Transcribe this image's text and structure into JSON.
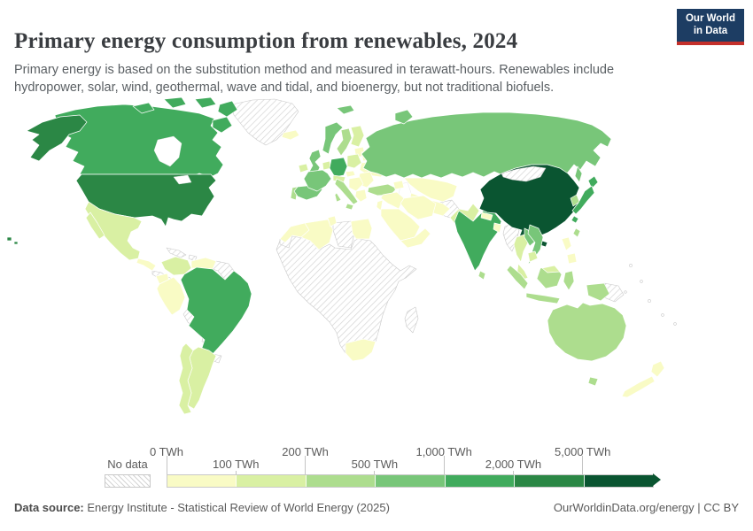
{
  "header": {
    "title": "Primary energy consumption from renewables, 2024",
    "subtitle": "Primary energy is based on the substitution method and measured in terawatt-hours. Renewables include hydropower, solar, wind, geothermal, wave and tidal, and bioenergy, but not traditional biofuels.",
    "logo": {
      "line1": "Our World",
      "line2": "in Data",
      "bg_color": "#1d3d63",
      "accent_color": "#c4302b"
    }
  },
  "chart_data": {
    "type": "choropleth_map",
    "title": "Primary energy consumption from renewables, 2024",
    "year": "2024",
    "unit": "TWh",
    "projection": "world",
    "legend": {
      "no_data_label": "No data",
      "bin_thresholds": [
        0,
        100,
        200,
        500,
        1000,
        2000,
        5000
      ],
      "bins": [
        {
          "label": "0–100 TWh",
          "color": "#f9fbc5"
        },
        {
          "label": "100–200 TWh",
          "color": "#d9f0a3"
        },
        {
          "label": "200–500 TWh",
          "color": "#addd8e"
        },
        {
          "label": "500–1,000 TWh",
          "color": "#78c679"
        },
        {
          "label": "1,000–2,000 TWh",
          "color": "#41ab5d"
        },
        {
          "label": "2,000–5,000 TWh",
          "color": "#2b8745"
        },
        {
          "label": "over 5,000 TWh",
          "color": "#0a5531"
        }
      ],
      "ticks": [
        {
          "label": "0 TWh",
          "boundary": 0,
          "row": "top"
        },
        {
          "label": "100 TWh",
          "boundary": 1,
          "row": "bottom"
        },
        {
          "label": "200 TWh",
          "boundary": 2,
          "row": "top"
        },
        {
          "label": "500 TWh",
          "boundary": 3,
          "row": "bottom"
        },
        {
          "label": "1,000 TWh",
          "boundary": 4,
          "row": "top"
        },
        {
          "label": "2,000 TWh",
          "boundary": 5,
          "row": "bottom"
        },
        {
          "label": "5,000 TWh",
          "boundary": 6,
          "row": "top"
        }
      ]
    },
    "regions": [
      {
        "id": "china",
        "name": "China",
        "bin": 6,
        "bucket": "over 5,000 TWh"
      },
      {
        "id": "united-states",
        "name": "United States",
        "bin": 5,
        "bucket": "2,000–5,000 TWh"
      },
      {
        "id": "canada",
        "name": "Canada",
        "bin": 4,
        "bucket": "1,000–2,000 TWh"
      },
      {
        "id": "brazil",
        "name": "Brazil",
        "bin": 4,
        "bucket": "1,000–2,000 TWh"
      },
      {
        "id": "india",
        "name": "India",
        "bin": 4,
        "bucket": "1,000–2,000 TWh"
      },
      {
        "id": "germany",
        "name": "Germany",
        "bin": 4,
        "bucket": "1,000–2,000 TWh"
      },
      {
        "id": "japan",
        "name": "Japan",
        "bin": 4,
        "bucket": "1,000–2,000 TWh"
      },
      {
        "id": "russia",
        "name": "Russia",
        "bin": 3,
        "bucket": "500–1,000 TWh"
      },
      {
        "id": "norway",
        "name": "Norway",
        "bin": 3,
        "bucket": "500–1,000 TWh"
      },
      {
        "id": "united-kingdom",
        "name": "United Kingdom",
        "bin": 3,
        "bucket": "500–1,000 TWh"
      },
      {
        "id": "france",
        "name": "France",
        "bin": 3,
        "bucket": "500–1,000 TWh"
      },
      {
        "id": "spain",
        "name": "Spain",
        "bin": 3,
        "bucket": "500–1,000 TWh"
      },
      {
        "id": "vietnam",
        "name": "Vietnam",
        "bin": 3,
        "bucket": "500–1,000 TWh"
      },
      {
        "id": "laos",
        "name": "Laos",
        "bin": 3,
        "bucket": "500–1,000 TWh"
      },
      {
        "id": "sweden",
        "name": "Sweden",
        "bin": 2,
        "bucket": "200–500 TWh"
      },
      {
        "id": "italy",
        "name": "Italy",
        "bin": 2,
        "bucket": "200–500 TWh"
      },
      {
        "id": "turkey",
        "name": "Turkey",
        "bin": 2,
        "bucket": "200–500 TWh"
      },
      {
        "id": "portugal",
        "name": "Portugal",
        "bin": 2,
        "bucket": "200–500 TWh"
      },
      {
        "id": "south-korea",
        "name": "South Korea",
        "bin": 2,
        "bucket": "200–500 TWh"
      },
      {
        "id": "australia",
        "name": "Australia",
        "bin": 2,
        "bucket": "200–500 TWh"
      },
      {
        "id": "indonesia",
        "name": "Indonesia",
        "bin": 2,
        "bucket": "200–500 TWh"
      },
      {
        "id": "taiwan",
        "name": "Taiwan",
        "bin": 2,
        "bucket": "200–500 TWh"
      },
      {
        "id": "sri-lanka",
        "name": "Sri Lanka",
        "bin": 2,
        "bucket": "200–500 TWh"
      },
      {
        "id": "mexico",
        "name": "Mexico",
        "bin": 1,
        "bucket": "100–200 TWh"
      },
      {
        "id": "colombia",
        "name": "Colombia",
        "bin": 1,
        "bucket": "100–200 TWh"
      },
      {
        "id": "argentina",
        "name": "Argentina",
        "bin": 1,
        "bucket": "100–200 TWh"
      },
      {
        "id": "chile",
        "name": "Chile",
        "bin": 1,
        "bucket": "100–200 TWh"
      },
      {
        "id": "finland",
        "name": "Finland",
        "bin": 1,
        "bucket": "100–200 TWh"
      },
      {
        "id": "poland",
        "name": "Poland",
        "bin": 1,
        "bucket": "100–200 TWh"
      },
      {
        "id": "pakistan",
        "name": "Pakistan",
        "bin": 1,
        "bucket": "100–200 TWh"
      },
      {
        "id": "thailand",
        "name": "Thailand",
        "bin": 1,
        "bucket": "100–200 TWh"
      },
      {
        "id": "ireland",
        "name": "Ireland",
        "bin": 1,
        "bucket": "100–200 TWh"
      },
      {
        "id": "malaysia",
        "name": "Malaysia",
        "bin": 1,
        "bucket": "100–200 TWh"
      },
      {
        "id": "netherlands-belgium",
        "name": "Netherlands & Belgium",
        "bin": 1,
        "bucket": "100–200 TWh"
      },
      {
        "id": "austria-switzerland",
        "name": "Austria & Switzerland",
        "bin": 1,
        "bucket": "100–200 TWh"
      },
      {
        "id": "cambodia",
        "name": "Cambodia",
        "bin": 1,
        "bucket": "100–200 TWh"
      },
      {
        "id": "iceland",
        "name": "Iceland",
        "bin": 0,
        "bucket": "0–100 TWh"
      },
      {
        "id": "peru",
        "name": "Peru",
        "bin": 0,
        "bucket": "0–100 TWh"
      },
      {
        "id": "ecuador",
        "name": "Ecuador",
        "bin": 0,
        "bucket": "0–100 TWh"
      },
      {
        "id": "venezuela",
        "name": "Venezuela",
        "bin": 0,
        "bucket": "0–100 TWh"
      },
      {
        "id": "new-zealand",
        "name": "New Zealand",
        "bin": 0,
        "bucket": "0–100 TWh"
      },
      {
        "id": "philippines",
        "name": "Philippines",
        "bin": 0,
        "bucket": "0–100 TWh"
      },
      {
        "id": "kazakhstan",
        "name": "Kazakhstan",
        "bin": 0,
        "bucket": "0–100 TWh"
      },
      {
        "id": "ukraine",
        "name": "Ukraine",
        "bin": 0,
        "bucket": "0–100 TWh"
      },
      {
        "id": "belarus",
        "name": "Belarus",
        "bin": 0,
        "bucket": "0–100 TWh"
      },
      {
        "id": "baltics",
        "name": "Baltic states",
        "bin": 0,
        "bucket": "0–100 TWh"
      },
      {
        "id": "denmark",
        "name": "Denmark",
        "bin": 0,
        "bucket": "0–100 TWh"
      },
      {
        "id": "czechia",
        "name": "Czechia",
        "bin": 0,
        "bucket": "0–100 TWh"
      },
      {
        "id": "balkans",
        "name": "Hungary & Balkans",
        "bin": 0,
        "bucket": "0–100 TWh"
      },
      {
        "id": "romania-bulgaria",
        "name": "Romania & Bulgaria",
        "bin": 0,
        "bucket": "0–100 TWh"
      },
      {
        "id": "greece",
        "name": "Greece",
        "bin": 0,
        "bucket": "0–100 TWh"
      },
      {
        "id": "morocco",
        "name": "Morocco",
        "bin": 0,
        "bucket": "0–100 TWh"
      },
      {
        "id": "algeria",
        "name": "Algeria",
        "bin": 0,
        "bucket": "0–100 TWh"
      },
      {
        "id": "tunisia",
        "name": "Tunisia",
        "bin": 0,
        "bucket": "0–100 TWh"
      },
      {
        "id": "egypt",
        "name": "Egypt",
        "bin": 0,
        "bucket": "0–100 TWh"
      },
      {
        "id": "south-africa",
        "name": "South Africa",
        "bin": 0,
        "bucket": "0–100 TWh"
      },
      {
        "id": "saudi-arabia",
        "name": "Saudi Arabia",
        "bin": 0,
        "bucket": "0–100 TWh"
      },
      {
        "id": "yemen-oman",
        "name": "Yemen & Oman",
        "bin": 0,
        "bucket": "0–100 TWh"
      },
      {
        "id": "iraq-syria",
        "name": "Iraq & Syria",
        "bin": 0,
        "bucket": "0–100 TWh"
      },
      {
        "id": "israel-jordan",
        "name": "Israel & Jordan",
        "bin": 0,
        "bucket": "0–100 TWh"
      },
      {
        "id": "iran",
        "name": "Iran",
        "bin": 0,
        "bucket": "0–100 TWh"
      },
      {
        "id": "central-asia",
        "name": "Turkmenistan & Uzbekistan",
        "bin": 0,
        "bucket": "0–100 TWh"
      },
      {
        "id": "caucasus",
        "name": "Caucasus",
        "bin": 0,
        "bucket": "0–100 TWh"
      },
      {
        "id": "nepal",
        "name": "Nepal",
        "bin": 0,
        "bucket": "0–100 TWh"
      },
      {
        "id": "bangladesh",
        "name": "Bangladesh",
        "bin": 0,
        "bucket": "0–100 TWh"
      },
      {
        "id": "central-america",
        "name": "Central America (partial)",
        "bin": 0,
        "bucket": "0–100 TWh"
      },
      {
        "id": "greenland",
        "name": "Greenland",
        "bin": -1,
        "bucket": "No data"
      },
      {
        "id": "western-sahara",
        "name": "Western Sahara",
        "bin": -1,
        "bucket": "No data"
      },
      {
        "id": "libya",
        "name": "Libya",
        "bin": -1,
        "bucket": "No data"
      },
      {
        "id": "sub-saharan-africa",
        "name": "Sub-Saharan Africa (most)",
        "bin": -1,
        "bucket": "No data"
      },
      {
        "id": "madagascar",
        "name": "Madagascar",
        "bin": -1,
        "bucket": "No data"
      },
      {
        "id": "bolivia",
        "name": "Bolivia",
        "bin": -1,
        "bucket": "No data"
      },
      {
        "id": "paraguay",
        "name": "Paraguay",
        "bin": -1,
        "bucket": "No data"
      },
      {
        "id": "uruguay",
        "name": "Uruguay",
        "bin": -1,
        "bucket": "No data"
      },
      {
        "id": "guyanas",
        "name": "Guyana & Suriname",
        "bin": -1,
        "bucket": "No data"
      },
      {
        "id": "cuba",
        "name": "Cuba",
        "bin": -1,
        "bucket": "No data"
      },
      {
        "id": "hispaniola",
        "name": "Hispaniola",
        "bin": -1,
        "bucket": "No data"
      },
      {
        "id": "central-america-south",
        "name": "Nicaragua–Panama",
        "bin": -1,
        "bucket": "No data"
      },
      {
        "id": "afghanistan",
        "name": "Afghanistan",
        "bin": -1,
        "bucket": "No data"
      },
      {
        "id": "mongolia",
        "name": "Mongolia",
        "bin": -1,
        "bucket": "No data"
      },
      {
        "id": "myanmar",
        "name": "Myanmar",
        "bin": -1,
        "bucket": "No data"
      },
      {
        "id": "north-korea",
        "name": "North Korea",
        "bin": -1,
        "bucket": "No data"
      },
      {
        "id": "papua-new-guinea",
        "name": "Papua New Guinea",
        "bin": -1,
        "bucket": "No data"
      }
    ]
  },
  "footer": {
    "source_label": "Data source:",
    "source_text": "Energy Institute - Statistical Review of World Energy (2025)",
    "link": "OurWorldinData.org/energy",
    "separator": "|",
    "license": "CC BY"
  }
}
